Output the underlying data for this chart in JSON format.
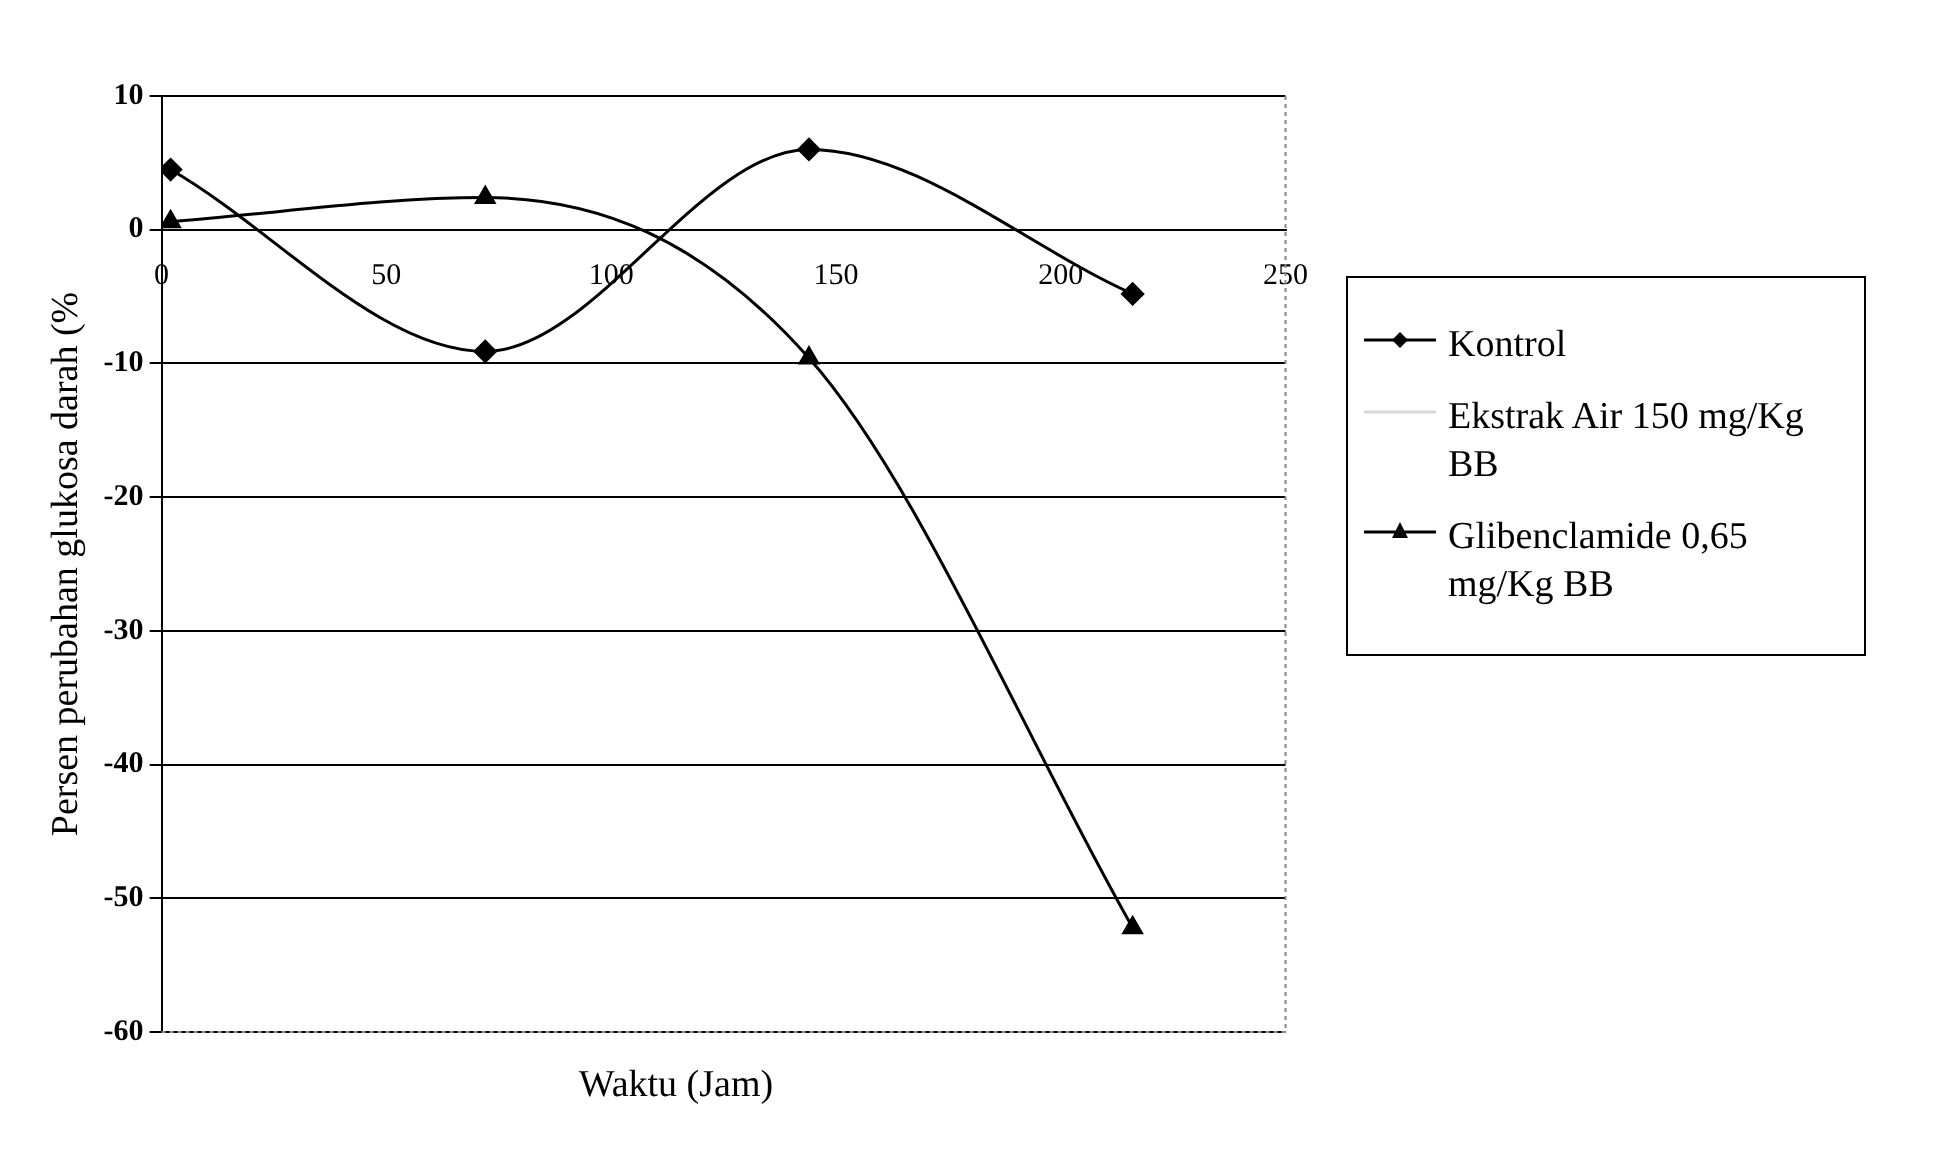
{
  "chart_data": {
    "type": "line",
    "xlabel": "Waktu (Jam)",
    "ylabel": "Persen perubahan glukosa darah (%",
    "x": [
      2,
      72,
      144,
      216
    ],
    "series": [
      {
        "name": "Kontrol",
        "color": "#000000",
        "marker": "diamond",
        "values": [
          4.5,
          -9.1,
          6.0,
          -4.8
        ]
      },
      {
        "name": "Ekstrak Air 150 mg/Kg BB",
        "color": "#d8d8d8",
        "values": [
          null,
          null,
          null,
          null
        ]
      },
      {
        "name": "Glibenclamide 0,65 mg/Kg BB",
        "color": "#000000",
        "marker": "triangle",
        "values": [
          0.6,
          2.4,
          -9.6,
          -52.2
        ]
      }
    ],
    "xlim": [
      0,
      250
    ],
    "xticks": [
      0,
      50,
      100,
      150,
      200,
      250
    ],
    "ylim": [
      -60,
      10
    ],
    "yticks": [
      -60,
      -50,
      -40,
      -30,
      -20,
      -10,
      0,
      10
    ],
    "grid": "y",
    "legend": "right",
    "line_style": "solid"
  }
}
